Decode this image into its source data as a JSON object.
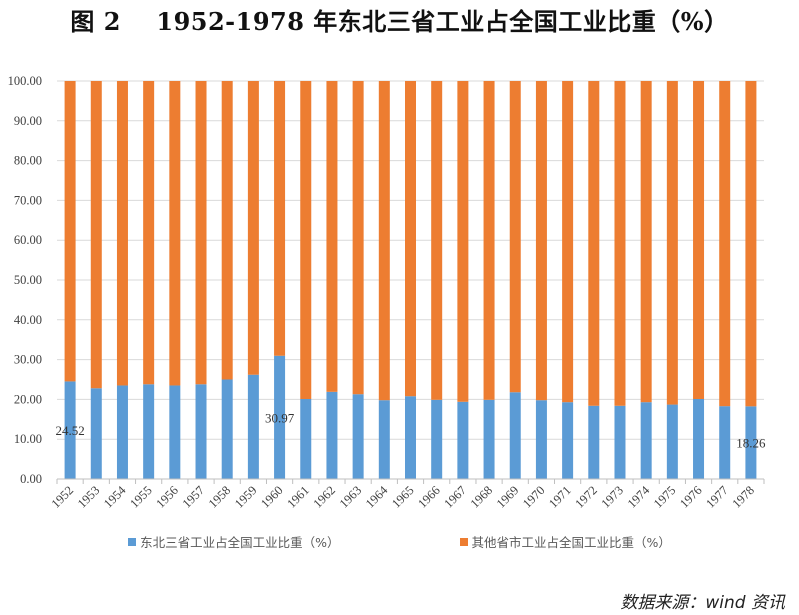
{
  "title": "图 2    1952-1978 年东北三省工业占全国工业比重（%）",
  "source": "数据来源：wind 资讯",
  "colors": {
    "series1": "#5B9BD5",
    "series2": "#ED7D31",
    "grid": "#d9d9d9",
    "axis": "#bfbfbf"
  },
  "chart_data": {
    "type": "bar",
    "stacked": true,
    "title": "1952-1978 年东北三省工业占全国工业比重（%）",
    "xlabel": "",
    "ylabel": "",
    "ylim": [
      0,
      100
    ],
    "yticks": [
      "0.00",
      "10.00",
      "20.00",
      "30.00",
      "40.00",
      "50.00",
      "60.00",
      "70.00",
      "80.00",
      "90.00",
      "100.00"
    ],
    "grid": true,
    "legend_position": "bottom",
    "categories": [
      "1952",
      "1953",
      "1954",
      "1955",
      "1956",
      "1957",
      "1958",
      "1959",
      "1960",
      "1961",
      "1962",
      "1963",
      "1964",
      "1965",
      "1966",
      "1967",
      "1968",
      "1969",
      "1970",
      "1971",
      "1972",
      "1973",
      "1974",
      "1975",
      "1976",
      "1977",
      "1978"
    ],
    "series": [
      {
        "name": "东北三省工业占全国工业比重（%）",
        "values": [
          24.52,
          22.8,
          23.5,
          23.8,
          23.5,
          23.8,
          25.0,
          26.2,
          30.97,
          20.1,
          21.9,
          21.3,
          19.8,
          20.8,
          19.9,
          19.4,
          19.9,
          21.8,
          19.8,
          19.3,
          18.4,
          18.4,
          19.3,
          18.7,
          20.1,
          18.3,
          18.26
        ]
      },
      {
        "name": "其他省市工业占全国工业比重（%）",
        "values": [
          75.48,
          77.2,
          76.5,
          76.2,
          76.5,
          76.2,
          75.0,
          73.8,
          69.03,
          79.9,
          78.1,
          78.7,
          80.2,
          79.2,
          80.1,
          80.6,
          80.1,
          78.2,
          80.2,
          80.7,
          81.6,
          81.6,
          80.7,
          81.3,
          79.9,
          81.7,
          81.74
        ]
      }
    ],
    "data_labels": [
      {
        "category": "1952",
        "text": "24.52"
      },
      {
        "category": "1960",
        "text": "30.97"
      },
      {
        "category": "1978",
        "text": "18.26"
      }
    ]
  }
}
